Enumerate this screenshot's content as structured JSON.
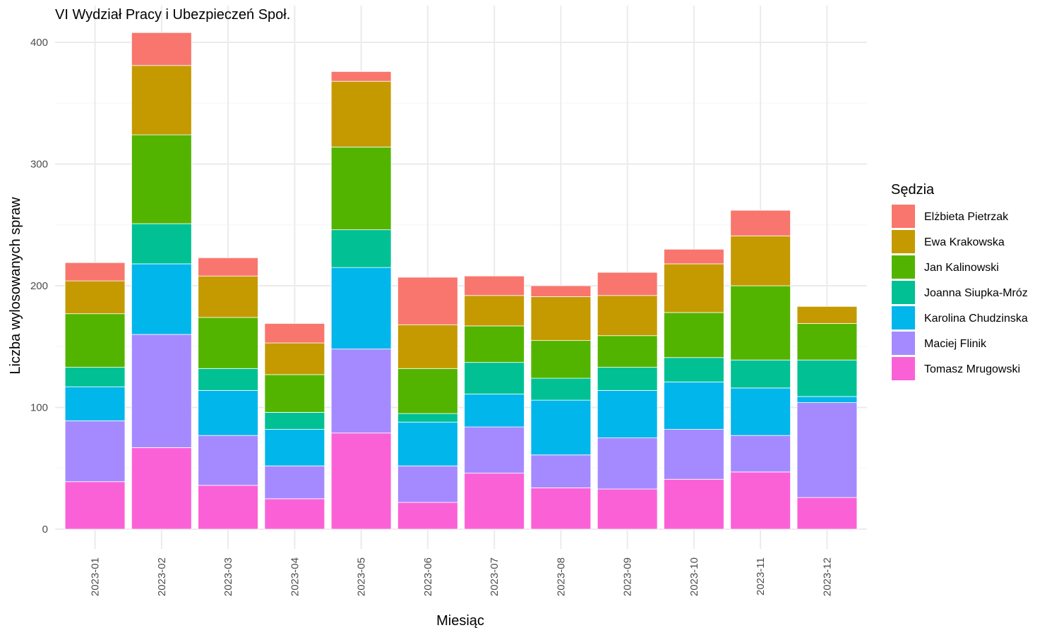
{
  "chart_data": {
    "type": "bar",
    "stacked": true,
    "title": "VI Wydział Pracy i Ubezpieczeń Społ.",
    "xlabel": "Miesiąc",
    "ylabel": "Liczba wylosowanych spraw",
    "ylim": [
      0,
      400
    ],
    "yticks": [
      0,
      100,
      200,
      300,
      400
    ],
    "grid": true,
    "legend_title": "Sędzia",
    "legend_position": "right",
    "categories": [
      "2023-01",
      "2023-02",
      "2023-03",
      "2023-04",
      "2023-05",
      "2023-06",
      "2023-07",
      "2023-08",
      "2023-09",
      "2023-10",
      "2023-11",
      "2023-12"
    ],
    "series": [
      {
        "name": "Elżbieta Pietrzak",
        "color": "#F8766D",
        "values": [
          15,
          27,
          15,
          16,
          8,
          39,
          16,
          9,
          19,
          12,
          21,
          0
        ]
      },
      {
        "name": "Ewa Krakowska",
        "color": "#C49A00",
        "values": [
          27,
          57,
          34,
          26,
          54,
          36,
          25,
          36,
          33,
          40,
          41,
          14
        ]
      },
      {
        "name": "Jan Kalinowski",
        "color": "#53B400",
        "values": [
          44,
          73,
          42,
          31,
          68,
          37,
          30,
          31,
          26,
          37,
          61,
          30
        ]
      },
      {
        "name": "Joanna Siupka-Mróz",
        "color": "#00C094",
        "values": [
          16,
          33,
          18,
          14,
          31,
          7,
          26,
          18,
          19,
          20,
          23,
          30
        ]
      },
      {
        "name": "Karolina Chudzinska",
        "color": "#00B6EB",
        "values": [
          28,
          58,
          37,
          30,
          67,
          36,
          27,
          45,
          39,
          39,
          39,
          5
        ]
      },
      {
        "name": "Maciej Flinik",
        "color": "#A58AFF",
        "values": [
          50,
          93,
          41,
          27,
          69,
          30,
          38,
          27,
          42,
          41,
          30,
          78
        ]
      },
      {
        "name": "Tomasz Mrugowski",
        "color": "#FB61D7",
        "values": [
          39,
          67,
          36,
          25,
          79,
          22,
          46,
          34,
          33,
          41,
          47,
          26
        ]
      }
    ]
  }
}
